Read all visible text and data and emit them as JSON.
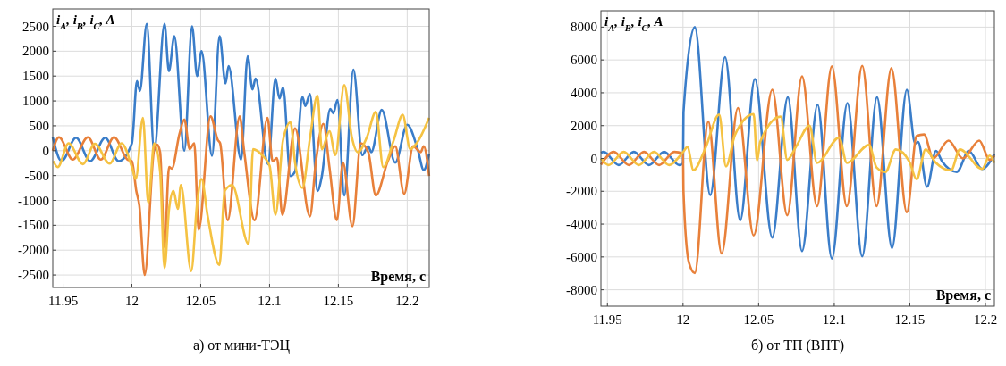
{
  "chart_data": [
    {
      "type": "line",
      "title": "а) от мини-ТЭЦ",
      "ylabel": "i$_{A}$, i$_{B}$, i$_{C}$, A",
      "xlabel": "Время, с",
      "xlim": [
        11.9425,
        12.216
      ],
      "ylim": [
        -2750,
        2850
      ],
      "xticks": [
        11.95,
        12,
        12.05,
        12.1,
        12.15,
        12.2
      ],
      "yticks": [
        -2500,
        -2000,
        -1500,
        -1000,
        -500,
        0,
        500,
        1000,
        1500,
        2000,
        2500
      ],
      "grid": true,
      "line_style": "solid",
      "marker": "none",
      "series": [
        {
          "color": "#3a7dc9",
          "x": [
            11.9425,
            11.9489,
            11.9594,
            11.9697,
            11.9806,
            11.9903,
            12.0,
            12.0037,
            12.0058,
            12.0108,
            12.0162,
            12.0237,
            12.0269,
            12.0308,
            12.0381,
            12.0437,
            12.0474,
            12.0506,
            12.0582,
            12.0637,
            12.068,
            12.0702,
            12.0793,
            12.0841,
            12.0876,
            12.0898,
            12.0989,
            12.1043,
            12.1072,
            12.1098,
            12.1152,
            12.1185,
            12.1239,
            12.126,
            12.1293,
            12.1348,
            12.138,
            12.1441,
            12.1463,
            12.1493,
            12.1543,
            12.1609,
            12.1674,
            12.1717,
            12.1739,
            12.1815,
            12.1913,
            12.2,
            12.2076,
            12.212,
            12.2159
          ],
          "values": [
            270,
            -210,
            260,
            -210,
            260,
            -210,
            150,
            1400,
            1200,
            2550,
            0,
            2550,
            1600,
            2300,
            0,
            2500,
            1500,
            2000,
            -100,
            2300,
            1350,
            1700,
            -180,
            1900,
            1230,
            1450,
            -270,
            1450,
            1050,
            1270,
            -510,
            -420,
            1080,
            900,
            1140,
            -810,
            -510,
            840,
            750,
            1020,
            -900,
            1630,
            -90,
            90,
            -30,
            820,
            -240,
            520,
            30,
            -390,
            -60
          ]
        },
        {
          "color": "#e8803a",
          "x": [
            11.9425,
            11.947,
            11.957,
            11.968,
            11.9774,
            11.987,
            11.9968,
            12.0,
            12.0032,
            12.0054,
            12.0093,
            12.0162,
            12.0183,
            12.0205,
            12.0237,
            12.027,
            12.029,
            12.0345,
            12.0381,
            12.042,
            12.0453,
            12.0485,
            12.0571,
            12.0625,
            12.0641,
            12.0696,
            12.0783,
            12.0815,
            12.0891,
            12.0985,
            12.1022,
            12.1054,
            12.1093,
            12.1185,
            12.1293,
            12.1337,
            12.1391,
            12.1435,
            12.1489,
            12.1533,
            12.1602,
            12.1663,
            12.1717,
            12.1772,
            12.1859,
            12.1913,
            12.1978,
            12.2043,
            12.2098,
            12.212,
            12.2159
          ],
          "values": [
            0,
            270,
            -180,
            270,
            -180,
            270,
            -180,
            -210,
            -810,
            -1100,
            -2500,
            30,
            120,
            -30,
            -1940,
            -330,
            -360,
            330,
            630,
            30,
            150,
            -1590,
            690,
            210,
            150,
            -1400,
            690,
            0,
            -1400,
            660,
            -210,
            -150,
            -1290,
            450,
            -1320,
            -210,
            540,
            -330,
            -1400,
            -240,
            -1520,
            150,
            -30,
            -900,
            -210,
            90,
            -870,
            90,
            -30,
            90,
            -510
          ]
        },
        {
          "color": "#f5c242",
          "x": [
            11.9429,
            11.9461,
            11.954,
            11.9644,
            11.9731,
            11.9838,
            11.9925,
            12.0,
            12.0028,
            12.008,
            12.0119,
            12.0162,
            12.0205,
            12.0237,
            12.027,
            12.0302,
            12.0334,
            12.0356,
            12.0431,
            12.0474,
            12.0506,
            12.0549,
            12.0636,
            12.0674,
            12.0728,
            12.0848,
            12.088,
            12.0946,
            12.1,
            12.1043,
            12.1098,
            12.1152,
            12.1185,
            12.1239,
            12.1293,
            12.1348,
            12.138,
            12.1435,
            12.1478,
            12.1543,
            12.1598,
            12.1641,
            12.1707,
            12.1772,
            12.1826,
            12.1902,
            12.1967,
            12.2022,
            12.2076,
            12.2159
          ],
          "values": [
            -210,
            -330,
            150,
            -270,
            140,
            -260,
            150,
            -330,
            -570,
            660,
            -1050,
            150,
            -420,
            -2360,
            -1170,
            -810,
            -1170,
            -690,
            -2420,
            -1050,
            -570,
            -1290,
            -2300,
            -810,
            -690,
            -1880,
            30,
            -90,
            -300,
            -1290,
            210,
            570,
            -240,
            -750,
            240,
            1110,
            30,
            390,
            -90,
            1320,
            270,
            -30,
            270,
            780,
            -330,
            210,
            720,
            30,
            180,
            660
          ]
        }
      ]
    },
    {
      "type": "line",
      "title": "б) от ТП (ВПТ)",
      "ylabel": "i$_{A}$, i$_{B}$, i$_{C}$, A",
      "xlabel": "Время, с",
      "xlim": [
        11.9457,
        12.2059
      ],
      "ylim": [
        -9000,
        9000
      ],
      "xticks": [
        11.95,
        12,
        12.05,
        12.1,
        12.15,
        12.2
      ],
      "yticks": [
        -8000,
        -6000,
        -4000,
        -2000,
        0,
        2000,
        4000,
        6000,
        8000
      ],
      "grid": true,
      "line_style": "solid",
      "marker": "none",
      "series": [
        {
          "color": "#3a7dc9",
          "x": [
            11.9457,
            11.9475,
            11.9575,
            11.9675,
            11.9775,
            11.9875,
            11.9975,
            12.0,
            12.0003,
            12.0078,
            12.018,
            12.0278,
            12.0378,
            12.0475,
            12.059,
            12.0693,
            12.0787,
            12.089,
            12.0984,
            12.1087,
            12.1185,
            12.1283,
            12.1382,
            12.148,
            12.1535,
            12.1555,
            12.1614,
            12.1673,
            12.1713,
            12.1811,
            12.189,
            12.1978,
            12.2059
          ],
          "values": [
            350,
            400,
            -400,
            400,
            -400,
            400,
            -400,
            -300,
            2800,
            8000,
            -2230,
            6170,
            -3780,
            4840,
            -4820,
            3730,
            -5640,
            3280,
            -6100,
            3370,
            -5970,
            3730,
            -5460,
            4190,
            910,
            1000,
            -1730,
            460,
            -180,
            -820,
            460,
            -640,
            270
          ]
        },
        {
          "color": "#e8803a",
          "x": [
            11.9457,
            11.9542,
            11.9642,
            11.9742,
            11.9842,
            11.9942,
            12.0,
            12.0003,
            12.0039,
            12.0078,
            12.0167,
            12.0255,
            12.0363,
            12.0467,
            12.059,
            12.0689,
            12.0787,
            12.0886,
            12.0984,
            12.1083,
            12.1185,
            12.128,
            12.1378,
            12.148,
            12.1545,
            12.1594,
            12.1654,
            12.1756,
            12.185,
            12.1959,
            12.2028,
            12.2059
          ],
          "values": [
            -380,
            400,
            -400,
            400,
            -400,
            400,
            300,
            -2000,
            -6340,
            -6980,
            2250,
            -5790,
            3070,
            -4690,
            4190,
            -3460,
            5000,
            -2910,
            5610,
            -2910,
            5640,
            -2910,
            5500,
            -3280,
            1370,
            1460,
            0,
            1090,
            0,
            1090,
            -90,
            180
          ]
        },
        {
          "color": "#f5c242",
          "x": [
            11.9457,
            11.9508,
            11.9608,
            11.9708,
            11.9808,
            11.9908,
            12.0,
            12.0029,
            12.0069,
            12.0147,
            12.0239,
            12.0284,
            12.0343,
            12.0467,
            12.049,
            12.051,
            12.0646,
            12.0689,
            12.0748,
            12.0837,
            12.0886,
            12.1033,
            12.1083,
            12.123,
            12.128,
            12.1339,
            12.1407,
            12.1496,
            12.1545,
            12.1604,
            12.1673,
            12.1772,
            12.1831,
            12.1978,
            12.2028,
            12.2059
          ],
          "values": [
            0,
            -400,
            400,
            -400,
            400,
            -400,
            390,
            700,
            -710,
            600,
            2670,
            -490,
            1420,
            2700,
            -130,
            1000,
            2550,
            -90,
            730,
            2000,
            -270,
            1270,
            -270,
            820,
            -550,
            -820,
            550,
            -180,
            -1270,
            550,
            -270,
            -730,
            550,
            -640,
            180,
            -270
          ]
        }
      ]
    }
  ]
}
